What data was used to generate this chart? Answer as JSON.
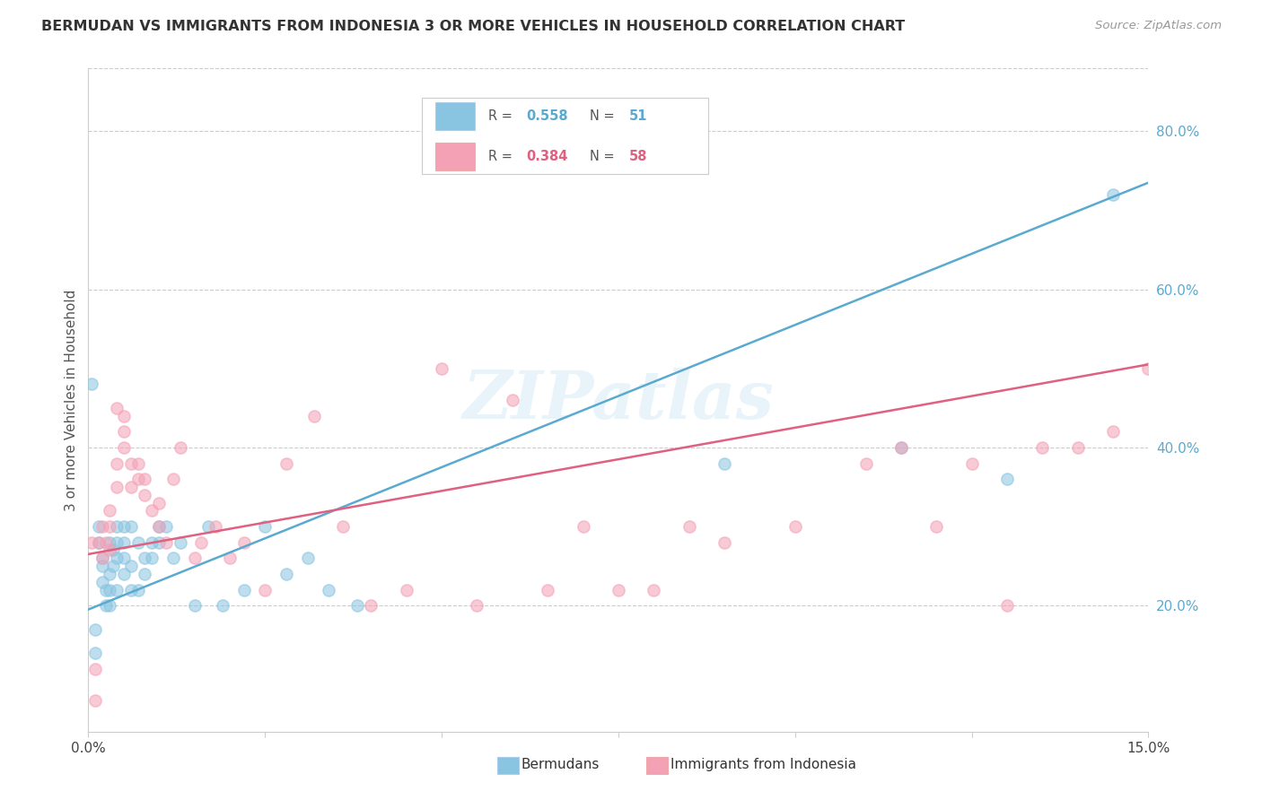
{
  "title": "BERMUDAN VS IMMIGRANTS FROM INDONESIA 3 OR MORE VEHICLES IN HOUSEHOLD CORRELATION CHART",
  "source": "Source: ZipAtlas.com",
  "ylabel": "3 or more Vehicles in Household",
  "right_yticks": [
    "80.0%",
    "60.0%",
    "40.0%",
    "20.0%"
  ],
  "right_ytick_values": [
    0.8,
    0.6,
    0.4,
    0.2
  ],
  "xmin": 0.0,
  "xmax": 0.15,
  "ymin": 0.04,
  "ymax": 0.88,
  "blue_color": "#89c4e1",
  "pink_color": "#f4a0b5",
  "blue_line_color": "#5aaad0",
  "pink_line_color": "#e06080",
  "watermark": "ZIPatlas",
  "blue_line_x0": 0.0,
  "blue_line_y0": 0.195,
  "blue_line_x1": 0.15,
  "blue_line_y1": 0.735,
  "pink_line_x0": 0.0,
  "pink_line_y0": 0.265,
  "pink_line_x1": 0.15,
  "pink_line_y1": 0.505,
  "blue_scatter_x": [
    0.0005,
    0.001,
    0.001,
    0.0015,
    0.0015,
    0.002,
    0.002,
    0.002,
    0.0025,
    0.0025,
    0.003,
    0.003,
    0.003,
    0.003,
    0.0035,
    0.0035,
    0.004,
    0.004,
    0.004,
    0.004,
    0.005,
    0.005,
    0.005,
    0.005,
    0.006,
    0.006,
    0.006,
    0.007,
    0.007,
    0.008,
    0.008,
    0.009,
    0.009,
    0.01,
    0.01,
    0.011,
    0.012,
    0.013,
    0.015,
    0.017,
    0.019,
    0.022,
    0.025,
    0.028,
    0.031,
    0.034,
    0.038,
    0.09,
    0.115,
    0.13,
    0.145
  ],
  "blue_scatter_y": [
    0.48,
    0.14,
    0.17,
    0.28,
    0.3,
    0.25,
    0.26,
    0.23,
    0.22,
    0.2,
    0.2,
    0.22,
    0.24,
    0.28,
    0.25,
    0.27,
    0.22,
    0.26,
    0.28,
    0.3,
    0.24,
    0.26,
    0.28,
    0.3,
    0.22,
    0.25,
    0.3,
    0.22,
    0.28,
    0.24,
    0.26,
    0.26,
    0.28,
    0.28,
    0.3,
    0.3,
    0.26,
    0.28,
    0.2,
    0.3,
    0.2,
    0.22,
    0.3,
    0.24,
    0.26,
    0.22,
    0.2,
    0.38,
    0.4,
    0.36,
    0.72
  ],
  "pink_scatter_x": [
    0.0005,
    0.001,
    0.001,
    0.0015,
    0.002,
    0.002,
    0.0025,
    0.003,
    0.003,
    0.003,
    0.004,
    0.004,
    0.004,
    0.005,
    0.005,
    0.005,
    0.006,
    0.006,
    0.007,
    0.007,
    0.008,
    0.008,
    0.009,
    0.01,
    0.01,
    0.011,
    0.012,
    0.013,
    0.015,
    0.016,
    0.018,
    0.02,
    0.022,
    0.025,
    0.028,
    0.032,
    0.036,
    0.04,
    0.045,
    0.05,
    0.055,
    0.06,
    0.065,
    0.07,
    0.075,
    0.08,
    0.085,
    0.09,
    0.1,
    0.11,
    0.115,
    0.12,
    0.125,
    0.13,
    0.135,
    0.14,
    0.145,
    0.15
  ],
  "pink_scatter_y": [
    0.28,
    0.08,
    0.12,
    0.28,
    0.26,
    0.3,
    0.28,
    0.27,
    0.3,
    0.32,
    0.35,
    0.38,
    0.45,
    0.4,
    0.42,
    0.44,
    0.38,
    0.35,
    0.36,
    0.38,
    0.34,
    0.36,
    0.32,
    0.3,
    0.33,
    0.28,
    0.36,
    0.4,
    0.26,
    0.28,
    0.3,
    0.26,
    0.28,
    0.22,
    0.38,
    0.44,
    0.3,
    0.2,
    0.22,
    0.5,
    0.2,
    0.46,
    0.22,
    0.3,
    0.22,
    0.22,
    0.3,
    0.28,
    0.3,
    0.38,
    0.4,
    0.3,
    0.38,
    0.2,
    0.4,
    0.4,
    0.42,
    0.5
  ]
}
